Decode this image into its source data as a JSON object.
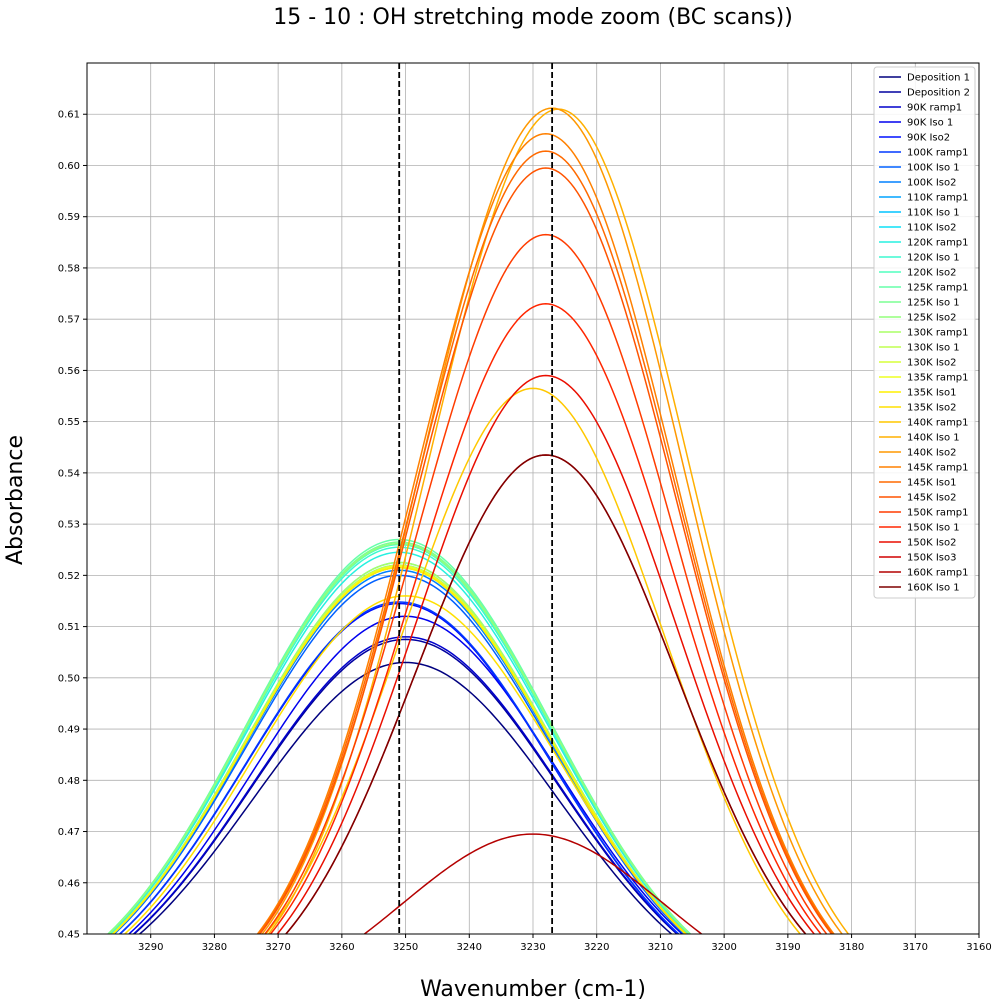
{
  "chart_data": {
    "type": "line",
    "title": "15 - 10 : OH stretching mode zoom (BC scans))",
    "xlabel": "Wavenumber (cm-1)",
    "ylabel": "Absorbance",
    "xlim": [
      3300,
      3160
    ],
    "ylim": [
      0.45,
      0.62
    ],
    "x_inverted": true,
    "grid": true,
    "legend_position": "top-right",
    "x_ticks": [
      3290,
      3280,
      3270,
      3260,
      3250,
      3240,
      3230,
      3220,
      3210,
      3200,
      3190,
      3180,
      3170,
      3160
    ],
    "y_ticks": [
      0.45,
      0.46,
      0.47,
      0.48,
      0.49,
      0.5,
      0.51,
      0.52,
      0.53,
      0.54,
      0.55,
      0.56,
      0.57,
      0.58,
      0.59,
      0.6,
      0.61
    ],
    "y_tick_labels": [
      "0.45",
      "0.46",
      "0.47",
      "0.48",
      "0.49",
      "0.50",
      "0.51",
      "0.52",
      "0.53",
      "0.54",
      "0.55",
      "0.56",
      "0.57",
      "0.58",
      "0.59",
      "0.60",
      "0.61"
    ],
    "vlines": [
      3251,
      3227
    ],
    "series": [
      {
        "name": "Deposition 1",
        "color": "#00007f",
        "peak_x": 3250,
        "peak_y": 0.503
      },
      {
        "name": "Deposition 2",
        "color": "#00009f",
        "peak_x": 3250,
        "peak_y": 0.5075
      },
      {
        "name": "90K ramp1",
        "color": "#0000cc",
        "peak_x": 3250,
        "peak_y": 0.508
      },
      {
        "name": "90K Iso 1",
        "color": "#0000ee",
        "peak_x": 3250,
        "peak_y": 0.512
      },
      {
        "name": "90K Iso2",
        "color": "#0010ff",
        "peak_x": 3251,
        "peak_y": 0.5145
      },
      {
        "name": "100K ramp1",
        "color": "#0038ff",
        "peak_x": 3251,
        "peak_y": 0.5148
      },
      {
        "name": "100K Iso 1",
        "color": "#0060ff",
        "peak_x": 3251,
        "peak_y": 0.52
      },
      {
        "name": "100K Iso2",
        "color": "#0080ff",
        "peak_x": 3251,
        "peak_y": 0.521
      },
      {
        "name": "110K ramp1",
        "color": "#00a4ff",
        "peak_x": 3251,
        "peak_y": 0.5215
      },
      {
        "name": "110K Iso 1",
        "color": "#00c4ff",
        "peak_x": 3251,
        "peak_y": 0.522
      },
      {
        "name": "110K Iso2",
        "color": "#0de0f7",
        "peak_x": 3251,
        "peak_y": 0.5225
      },
      {
        "name": "120K ramp1",
        "color": "#26f0e0",
        "peak_x": 3251,
        "peak_y": 0.5245
      },
      {
        "name": "120K Iso 1",
        "color": "#3df9d0",
        "peak_x": 3251,
        "peak_y": 0.5255
      },
      {
        "name": "120K Iso2",
        "color": "#50ffbf",
        "peak_x": 3251,
        "peak_y": 0.526
      },
      {
        "name": "125K ramp1",
        "color": "#66ffaa",
        "peak_x": 3251,
        "peak_y": 0.527
      },
      {
        "name": "125K Iso 1",
        "color": "#7cff93",
        "peak_x": 3251,
        "peak_y": 0.5265
      },
      {
        "name": "125K Iso2",
        "color": "#93ff7c",
        "peak_x": 3251,
        "peak_y": 0.5262
      },
      {
        "name": "130K ramp1",
        "color": "#aaff66",
        "peak_x": 3251,
        "peak_y": 0.5225
      },
      {
        "name": "130K Iso 1",
        "color": "#c1ff50",
        "peak_x": 3251,
        "peak_y": 0.522
      },
      {
        "name": "130K Iso2",
        "color": "#d7ff39",
        "peak_x": 3251,
        "peak_y": 0.5215
      },
      {
        "name": "135K ramp1",
        "color": "#eeff22",
        "peak_x": 3251,
        "peak_y": 0.5218
      },
      {
        "name": "135K Iso1",
        "color": "#fff000",
        "peak_x": 3251,
        "peak_y": 0.5215
      },
      {
        "name": "135K Iso2",
        "color": "#ffe000",
        "peak_x": 3250,
        "peak_y": 0.516
      },
      {
        "name": "140K ramp1",
        "color": "#ffc800",
        "peak_x": 3230,
        "peak_y": 0.5565
      },
      {
        "name": "140K Iso 1",
        "color": "#ffb000",
        "peak_x": 3226,
        "peak_y": 0.611
      },
      {
        "name": "140K Iso2",
        "color": "#ff9800",
        "peak_x": 3227,
        "peak_y": 0.6112
      },
      {
        "name": "145K ramp1",
        "color": "#ff8000",
        "peak_x": 3228,
        "peak_y": 0.6062
      },
      {
        "name": "145K Iso1",
        "color": "#ff6a00",
        "peak_x": 3228,
        "peak_y": 0.6028
      },
      {
        "name": "145K Iso2",
        "color": "#ff5400",
        "peak_x": 3228,
        "peak_y": 0.5995
      },
      {
        "name": "150K ramp1",
        "color": "#ff3c00",
        "peak_x": 3228,
        "peak_y": 0.5865
      },
      {
        "name": "150K Iso 1",
        "color": "#ff2600",
        "peak_x": 3228,
        "peak_y": 0.573
      },
      {
        "name": "150K Iso2",
        "color": "#ea0e00",
        "peak_x": 3228,
        "peak_y": 0.559
      },
      {
        "name": "150K Iso3",
        "color": "#d00000",
        "peak_x": 3228,
        "peak_y": 0.5435
      },
      {
        "name": "160K ramp1",
        "color": "#b40000",
        "peak_x": 3230,
        "peak_y": 0.4695
      },
      {
        "name": "160K Iso 1",
        "color": "#7f0000",
        "peak_x": 3228,
        "peak_y": 0.5435
      }
    ]
  }
}
